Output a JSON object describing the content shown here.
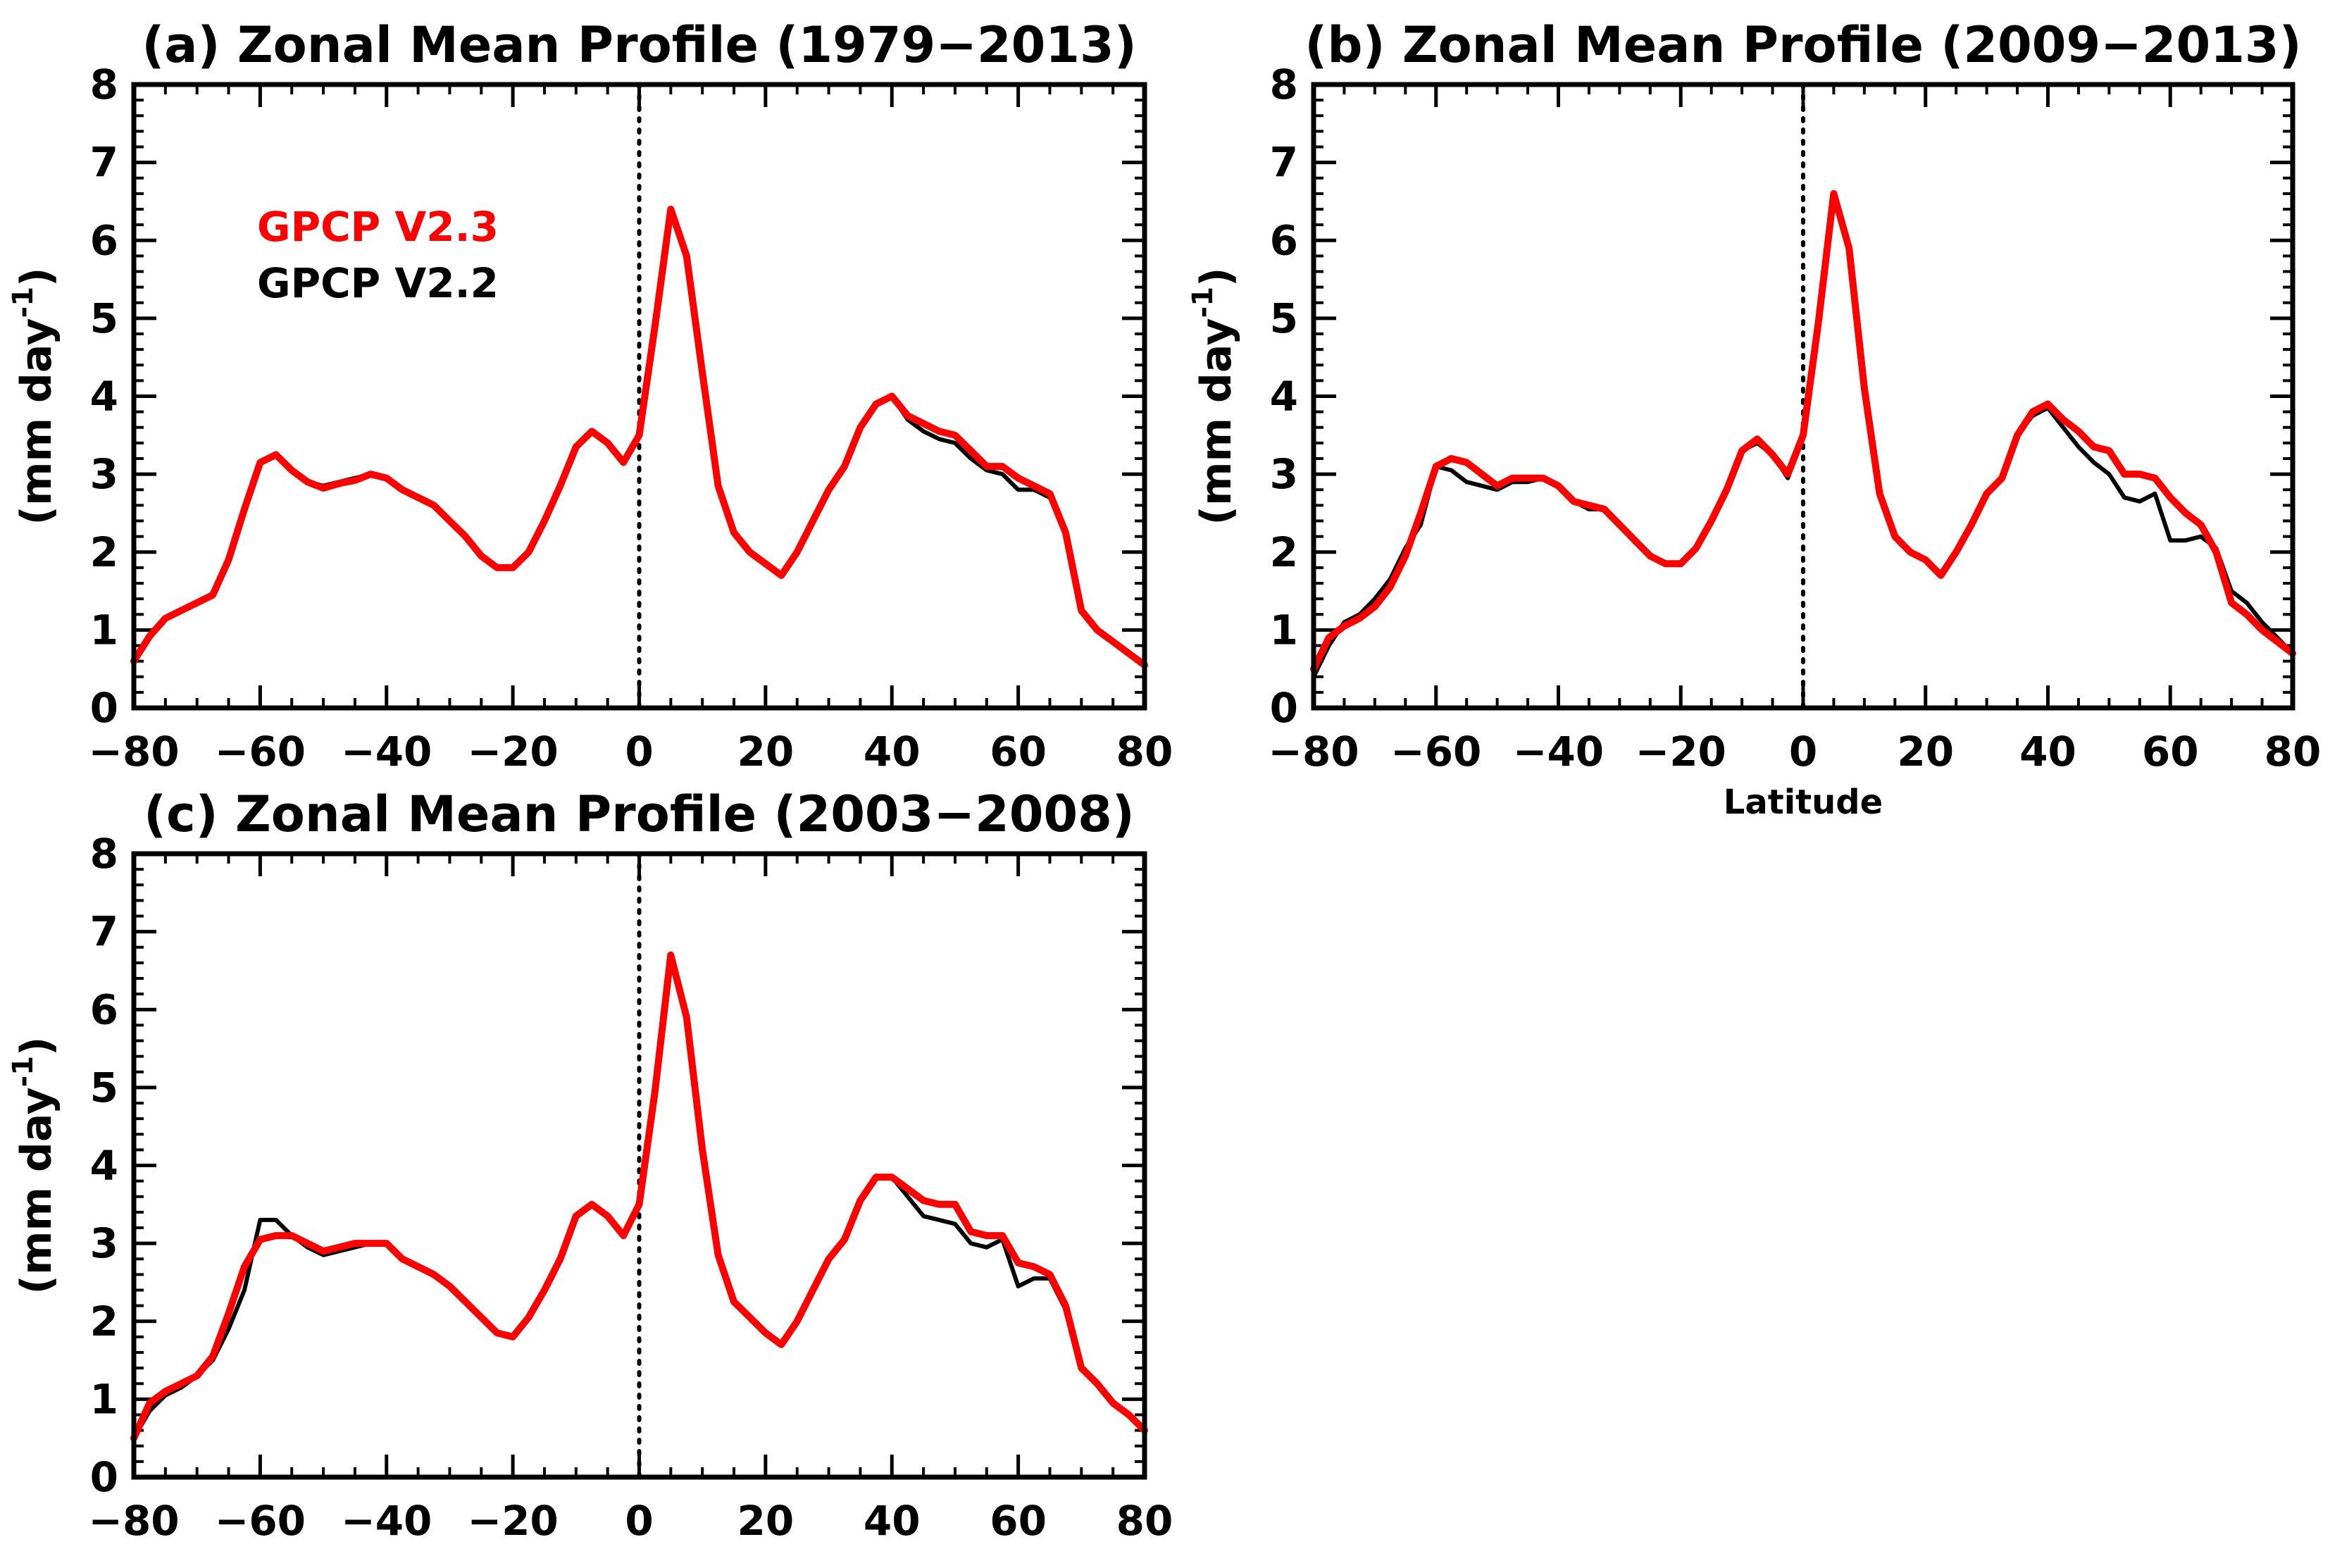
{
  "figure": {
    "x_label": "Latitude",
    "y_label_base": "(mm day",
    "y_label_sup": "-1",
    "y_label_close": ")",
    "legend": [
      {
        "label": "GPCP V2.3",
        "color": "#ff0000"
      },
      {
        "label": "GPCP V2.2",
        "color": "#000000"
      }
    ]
  },
  "chart_data": [
    {
      "id": "a",
      "type": "line",
      "title": "(a) Zonal Mean Profile (1979−2013)",
      "xlabel": "",
      "ylabel": "(mm day^-1)",
      "xlim": [
        -80,
        80
      ],
      "ylim": [
        0,
        8
      ],
      "x_ticks": [
        -80,
        -60,
        -40,
        -20,
        0,
        20,
        40,
        60,
        80
      ],
      "y_ticks": [
        0,
        1,
        2,
        3,
        4,
        5,
        6,
        7,
        8
      ],
      "x_tick_labels": [
        "−80",
        "−60",
        "−40",
        "−20",
        "0",
        "20",
        "40",
        "60",
        "80"
      ],
      "y_tick_labels": [
        "0",
        "1",
        "2",
        "3",
        "4",
        "5",
        "6",
        "7",
        "8"
      ],
      "zero_line": true,
      "show_legend": true,
      "x": [
        -80,
        -77.5,
        -75,
        -72.5,
        -70,
        -67.5,
        -65,
        -62.5,
        -60,
        -57.5,
        -55,
        -52.5,
        -50,
        -47.5,
        -45,
        -42.5,
        -40,
        -37.5,
        -35,
        -32.5,
        -30,
        -27.5,
        -25,
        -22.5,
        -20,
        -17.5,
        -15,
        -12.5,
        -10,
        -7.5,
        -5,
        -2.5,
        0,
        2.5,
        5,
        7.5,
        10,
        12.5,
        15,
        17.5,
        20,
        22.5,
        25,
        27.5,
        30,
        32.5,
        35,
        37.5,
        40,
        42.5,
        45,
        47.5,
        50,
        52.5,
        55,
        57.5,
        60,
        62.5,
        65,
        67.5,
        70,
        72.5,
        75,
        77.5,
        80
      ],
      "series": [
        {
          "name": "GPCP V2.2",
          "color": "#000000",
          "values": [
            0.6,
            0.9,
            1.15,
            1.25,
            1.35,
            1.45,
            1.9,
            2.5,
            3.15,
            3.25,
            3.05,
            2.9,
            2.85,
            2.9,
            2.95,
            3.0,
            2.95,
            2.8,
            2.7,
            2.6,
            2.4,
            2.2,
            1.95,
            1.8,
            1.8,
            2.0,
            2.4,
            2.85,
            3.35,
            3.55,
            3.4,
            3.15,
            3.5,
            4.9,
            6.4,
            5.8,
            4.3,
            2.9,
            2.25,
            2.0,
            1.85,
            1.7,
            2.0,
            2.4,
            2.8,
            3.1,
            3.6,
            3.9,
            4.0,
            3.7,
            3.55,
            3.45,
            3.4,
            3.2,
            3.05,
            3.0,
            2.8,
            2.8,
            2.7,
            2.25,
            1.25,
            1.0,
            0.85,
            0.7,
            0.55
          ]
        },
        {
          "name": "GPCP V2.3",
          "color": "#ff0000",
          "values": [
            0.6,
            0.92,
            1.15,
            1.25,
            1.35,
            1.45,
            1.9,
            2.55,
            3.15,
            3.25,
            3.05,
            2.9,
            2.82,
            2.88,
            2.92,
            3.0,
            2.95,
            2.8,
            2.7,
            2.6,
            2.4,
            2.2,
            1.95,
            1.8,
            1.8,
            2.0,
            2.4,
            2.85,
            3.35,
            3.55,
            3.4,
            3.15,
            3.5,
            4.9,
            6.4,
            5.8,
            4.3,
            2.85,
            2.25,
            2.0,
            1.85,
            1.7,
            2.0,
            2.4,
            2.8,
            3.1,
            3.6,
            3.9,
            4.0,
            3.75,
            3.65,
            3.55,
            3.5,
            3.3,
            3.1,
            3.1,
            2.95,
            2.85,
            2.75,
            2.25,
            1.25,
            1.0,
            0.85,
            0.7,
            0.55
          ]
        }
      ]
    },
    {
      "id": "b",
      "type": "line",
      "title": "(b) Zonal Mean Profile (2009−2013)",
      "xlabel": "Latitude",
      "ylabel": "(mm day^-1)",
      "xlim": [
        -80,
        80
      ],
      "ylim": [
        0,
        8
      ],
      "x_ticks": [
        -80,
        -60,
        -40,
        -20,
        0,
        20,
        40,
        60,
        80
      ],
      "y_ticks": [
        0,
        1,
        2,
        3,
        4,
        5,
        6,
        7,
        8
      ],
      "x_tick_labels": [
        "−80",
        "−60",
        "−40",
        "−20",
        "0",
        "20",
        "40",
        "60",
        "80"
      ],
      "y_tick_labels": [
        "0",
        "1",
        "2",
        "3",
        "4",
        "5",
        "6",
        "7",
        "8"
      ],
      "zero_line": true,
      "show_legend": false,
      "x": [
        -80,
        -77.5,
        -75,
        -72.5,
        -70,
        -67.5,
        -65,
        -62.5,
        -60,
        -57.5,
        -55,
        -52.5,
        -50,
        -47.5,
        -45,
        -42.5,
        -40,
        -37.5,
        -35,
        -32.5,
        -30,
        -27.5,
        -25,
        -22.5,
        -20,
        -17.5,
        -15,
        -12.5,
        -10,
        -7.5,
        -5,
        -2.5,
        0,
        2.5,
        5,
        7.5,
        10,
        12.5,
        15,
        17.5,
        20,
        22.5,
        25,
        27.5,
        30,
        32.5,
        35,
        37.5,
        40,
        42.5,
        45,
        47.5,
        50,
        52.5,
        55,
        57.5,
        60,
        62.5,
        65,
        67.5,
        70,
        72.5,
        75,
        77.5,
        80
      ],
      "series": [
        {
          "name": "GPCP V2.2",
          "color": "#000000",
          "values": [
            0.4,
            0.8,
            1.1,
            1.2,
            1.4,
            1.65,
            2.05,
            2.35,
            3.1,
            3.05,
            2.9,
            2.85,
            2.8,
            2.9,
            2.9,
            2.95,
            2.85,
            2.65,
            2.55,
            2.55,
            2.35,
            2.15,
            1.95,
            1.85,
            1.85,
            2.05,
            2.4,
            2.8,
            3.3,
            3.4,
            3.25,
            2.95,
            3.5,
            4.95,
            6.6,
            5.9,
            4.1,
            2.75,
            2.2,
            2.0,
            1.9,
            1.7,
            2.0,
            2.35,
            2.75,
            2.95,
            3.5,
            3.75,
            3.85,
            3.6,
            3.35,
            3.15,
            3.0,
            2.7,
            2.65,
            2.75,
            2.15,
            2.15,
            2.2,
            2.05,
            1.5,
            1.35,
            1.1,
            0.9,
            0.7
          ]
        },
        {
          "name": "GPCP V2.3",
          "color": "#ff0000",
          "values": [
            0.5,
            0.9,
            1.05,
            1.15,
            1.3,
            1.55,
            1.95,
            2.5,
            3.1,
            3.2,
            3.15,
            3.0,
            2.85,
            2.95,
            2.95,
            2.95,
            2.85,
            2.65,
            2.6,
            2.55,
            2.35,
            2.15,
            1.95,
            1.85,
            1.85,
            2.05,
            2.4,
            2.8,
            3.3,
            3.45,
            3.25,
            3.0,
            3.5,
            4.95,
            6.6,
            5.9,
            4.1,
            2.75,
            2.2,
            2.0,
            1.9,
            1.7,
            2.0,
            2.35,
            2.75,
            2.95,
            3.5,
            3.8,
            3.9,
            3.7,
            3.55,
            3.35,
            3.3,
            3.0,
            3.0,
            2.95,
            2.7,
            2.5,
            2.35,
            2.0,
            1.35,
            1.2,
            1.0,
            0.85,
            0.7
          ]
        }
      ]
    },
    {
      "id": "c",
      "type": "line",
      "title": "(c) Zonal Mean Profile (2003−2008)",
      "xlabel": "",
      "ylabel": "(mm day^-1)",
      "xlim": [
        -80,
        80
      ],
      "ylim": [
        0,
        8
      ],
      "x_ticks": [
        -80,
        -60,
        -40,
        -20,
        0,
        20,
        40,
        60,
        80
      ],
      "y_ticks": [
        0,
        1,
        2,
        3,
        4,
        5,
        6,
        7,
        8
      ],
      "x_tick_labels": [
        "−80",
        "−60",
        "−40",
        "−20",
        "0",
        "20",
        "40",
        "60",
        "80"
      ],
      "y_tick_labels": [
        "0",
        "1",
        "2",
        "3",
        "4",
        "5",
        "6",
        "7",
        "8"
      ],
      "zero_line": true,
      "show_legend": false,
      "x": [
        -80,
        -77.5,
        -75,
        -72.5,
        -70,
        -67.5,
        -65,
        -62.5,
        -60,
        -57.5,
        -55,
        -52.5,
        -50,
        -47.5,
        -45,
        -42.5,
        -40,
        -37.5,
        -35,
        -32.5,
        -30,
        -27.5,
        -25,
        -22.5,
        -20,
        -17.5,
        -15,
        -12.5,
        -10,
        -7.5,
        -5,
        -2.5,
        0,
        2.5,
        5,
        7.5,
        10,
        12.5,
        15,
        17.5,
        20,
        22.5,
        25,
        27.5,
        30,
        32.5,
        35,
        37.5,
        40,
        42.5,
        45,
        47.5,
        50,
        52.5,
        55,
        57.5,
        60,
        62.5,
        65,
        67.5,
        70,
        72.5,
        75,
        77.5,
        80
      ],
      "series": [
        {
          "name": "GPCP V2.2",
          "color": "#000000",
          "values": [
            0.5,
            0.85,
            1.05,
            1.15,
            1.3,
            1.5,
            1.9,
            2.4,
            3.3,
            3.3,
            3.1,
            2.95,
            2.85,
            2.9,
            2.95,
            3.0,
            3.0,
            2.8,
            2.7,
            2.6,
            2.45,
            2.25,
            2.05,
            1.85,
            1.8,
            2.05,
            2.4,
            2.8,
            3.35,
            3.5,
            3.35,
            3.1,
            3.5,
            4.95,
            6.7,
            5.9,
            4.2,
            2.85,
            2.25,
            2.05,
            1.85,
            1.7,
            2.0,
            2.4,
            2.8,
            3.05,
            3.55,
            3.85,
            3.85,
            3.6,
            3.35,
            3.3,
            3.25,
            3.0,
            2.95,
            3.05,
            2.45,
            2.55,
            2.55,
            2.15,
            1.4,
            1.2,
            0.95,
            0.8,
            0.6
          ]
        },
        {
          "name": "GPCP V2.3",
          "color": "#ff0000",
          "values": [
            0.5,
            0.95,
            1.1,
            1.2,
            1.3,
            1.55,
            2.1,
            2.7,
            3.05,
            3.1,
            3.1,
            3.0,
            2.9,
            2.95,
            3.0,
            3.0,
            3.0,
            2.8,
            2.7,
            2.6,
            2.45,
            2.25,
            2.05,
            1.85,
            1.8,
            2.05,
            2.4,
            2.8,
            3.35,
            3.5,
            3.35,
            3.1,
            3.5,
            4.95,
            6.7,
            5.9,
            4.2,
            2.85,
            2.25,
            2.05,
            1.85,
            1.7,
            2.0,
            2.4,
            2.8,
            3.05,
            3.55,
            3.85,
            3.85,
            3.7,
            3.55,
            3.5,
            3.5,
            3.15,
            3.1,
            3.1,
            2.75,
            2.7,
            2.6,
            2.2,
            1.4,
            1.2,
            0.95,
            0.8,
            0.6
          ]
        }
      ]
    }
  ]
}
